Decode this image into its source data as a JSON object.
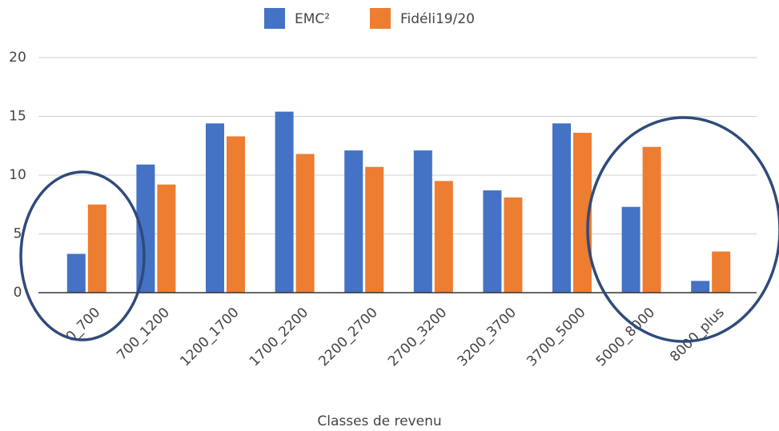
{
  "chart_data": {
    "type": "bar",
    "x_label": "Classes de revenu",
    "categories": [
      "0_700",
      "700_1200",
      "1200_1700",
      "1700_2200",
      "2200_2700",
      "2700_3200",
      "3200_3700",
      "3700_5000",
      "5000_8000",
      "8000_plus"
    ],
    "series": [
      {
        "name": "EMC²",
        "color": "#4472c4",
        "values": [
          3.3,
          10.9,
          14.4,
          15.4,
          12.1,
          12.1,
          8.7,
          14.4,
          7.3,
          1.0
        ]
      },
      {
        "name": "Fidéli19/20",
        "color": "#ed7d31",
        "values": [
          7.5,
          9.2,
          13.3,
          11.8,
          10.7,
          9.5,
          8.1,
          13.6,
          12.4,
          3.5
        ]
      }
    ],
    "ylim": [
      0,
      20
    ],
    "yticks": [
      0,
      5,
      10,
      15,
      20
    ],
    "grid": true,
    "legend": "top"
  }
}
